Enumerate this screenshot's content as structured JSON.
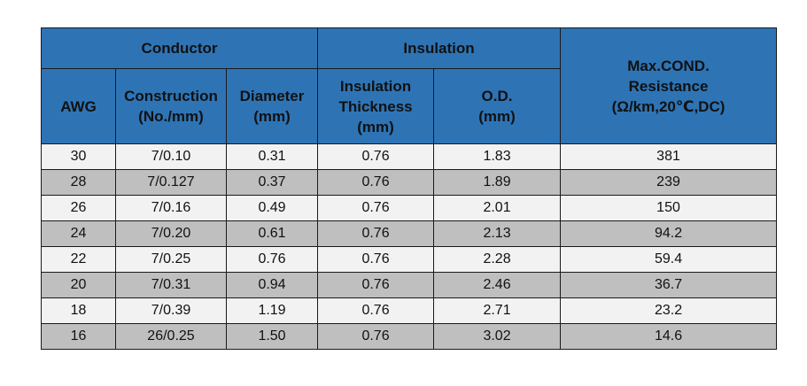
{
  "headers": {
    "conductor": "Conductor",
    "insulation": "Insulation",
    "resistance": [
      "Max.COND.",
      "Resistance",
      "(Ω/km,20℃,DC)"
    ],
    "awg": "AWG",
    "construction": [
      "Construction",
      "(No./mm)"
    ],
    "diameter": [
      "Diameter",
      "(mm)"
    ],
    "thickness": [
      "Insulation",
      "Thickness",
      "(mm)"
    ],
    "od": [
      "O.D.",
      "(mm)"
    ]
  },
  "rows": [
    [
      "30",
      "7/0.10",
      "0.31",
      "0.76",
      "1.83",
      "381"
    ],
    [
      "28",
      "7/0.127",
      "0.37",
      "0.76",
      "1.89",
      "239"
    ],
    [
      "26",
      "7/0.16",
      "0.49",
      "0.76",
      "2.01",
      "150"
    ],
    [
      "24",
      "7/0.20",
      "0.61",
      "0.76",
      "2.13",
      "94.2"
    ],
    [
      "22",
      "7/0.25",
      "0.76",
      "0.76",
      "2.28",
      "59.4"
    ],
    [
      "20",
      "7/0.31",
      "0.94",
      "0.76",
      "2.46",
      "36.7"
    ],
    [
      "18",
      "7/0.39",
      "1.19",
      "0.76",
      "2.71",
      "23.2"
    ],
    [
      "16",
      "26/0.25",
      "1.50",
      "0.76",
      "3.02",
      "14.6"
    ]
  ],
  "colors": {
    "header_bg": "#2e74b5",
    "row_light": "#f2f2f2",
    "row_dark": "#bfbfbf",
    "border": "#1a1a1a"
  }
}
